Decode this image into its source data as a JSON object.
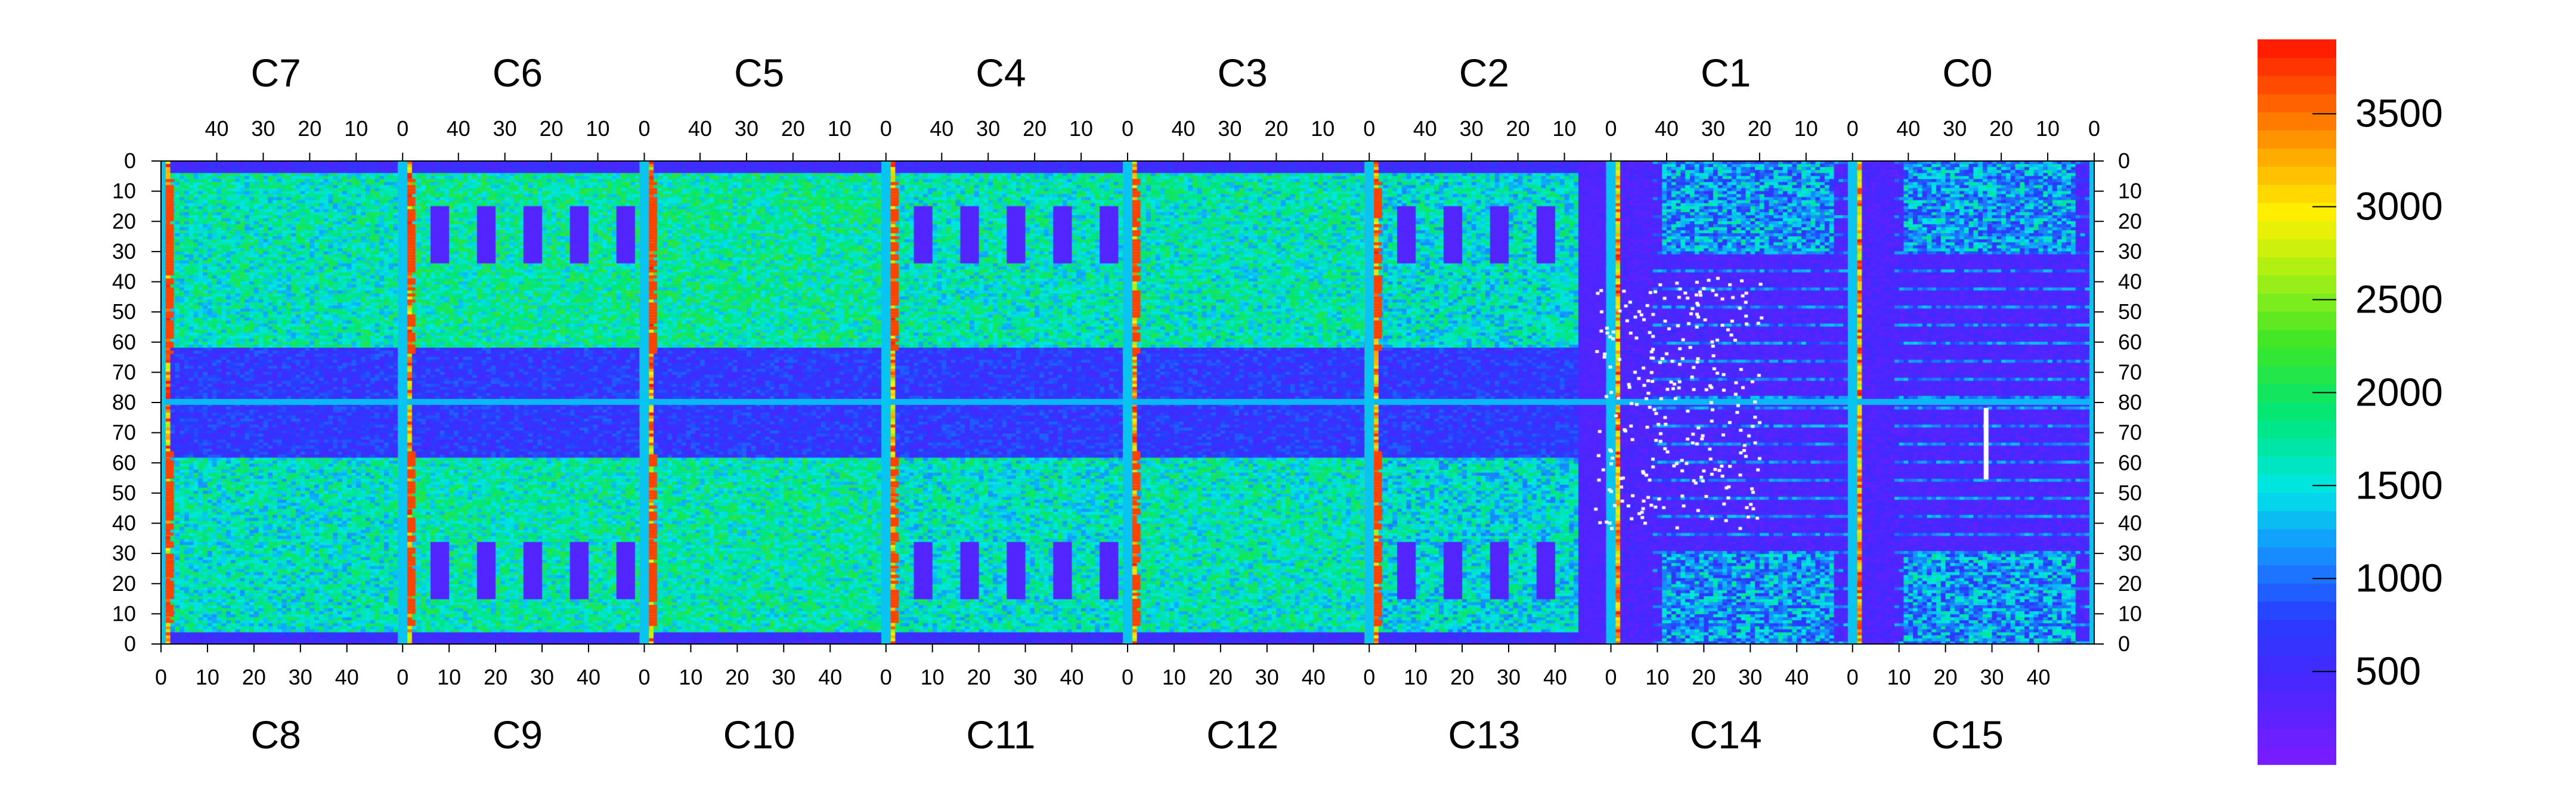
{
  "chart_data": {
    "type": "heatmap",
    "top_chip_labels": [
      "C7",
      "C6",
      "C5",
      "C4",
      "C3",
      "C2",
      "C1",
      "C0"
    ],
    "bottom_chip_labels": [
      "C8",
      "C9",
      "C10",
      "C11",
      "C12",
      "C13",
      "C14",
      "C15"
    ],
    "top_axis_ticks": [
      "40",
      "30",
      "20",
      "10",
      "0"
    ],
    "bottom_axis_ticks": [
      "0",
      "10",
      "20",
      "30",
      "40"
    ],
    "left_axis_ticks": [
      "0",
      "10",
      "20",
      "30",
      "40",
      "50",
      "60",
      "70",
      "80",
      "70",
      "60",
      "50",
      "40",
      "30",
      "20",
      "10",
      "0"
    ],
    "right_axis_ticks": [
      "0",
      "10",
      "20",
      "30",
      "40",
      "50",
      "60",
      "70",
      "80",
      "70",
      "60",
      "50",
      "40",
      "30",
      "20",
      "10",
      "0"
    ],
    "colorbar_ticks": [
      "3500",
      "3000",
      "2500",
      "2000",
      "1500",
      "1000",
      "500"
    ],
    "colorbar_range": [
      0,
      3900
    ],
    "chip_columns": 52,
    "rows_per_half": 80,
    "hot_columns": [
      0,
      52
    ],
    "chips": [
      {
        "name": "C7",
        "level": 1500,
        "roi_level": 1650
      },
      {
        "name": "C6",
        "level": 1450,
        "roi_level": 1750
      },
      {
        "name": "C5",
        "level": 1500,
        "roi_level": 1750
      },
      {
        "name": "C4",
        "level": 1400,
        "roi_level": 1650
      },
      {
        "name": "C3",
        "level": 1400,
        "roi_level": 1650
      },
      {
        "name": "C2",
        "level": 1350,
        "roi_level": 1550
      },
      {
        "name": "C1",
        "level": 900,
        "roi_level": 600
      },
      {
        "name": "C0",
        "level": 1200,
        "roi_level": 700
      },
      {
        "name": "C8",
        "level": 1400,
        "roi_level": 1600
      },
      {
        "name": "C9",
        "level": 1450,
        "roi_level": 1700
      },
      {
        "name": "C10",
        "level": 1500,
        "roi_level": 1700
      },
      {
        "name": "C11",
        "level": 1400,
        "roi_level": 1600
      },
      {
        "name": "C12",
        "level": 1450,
        "roi_level": 1650
      },
      {
        "name": "C13",
        "level": 1300,
        "roi_level": 1500
      },
      {
        "name": "C14",
        "level": 800,
        "roi_level": 550
      },
      {
        "name": "C15",
        "level": 1000,
        "roi_level": 600
      }
    ],
    "colors": {
      "low": "#7a1cff",
      "hot": "#ff1a00",
      "dead_pixels": "#ffffff"
    }
  }
}
